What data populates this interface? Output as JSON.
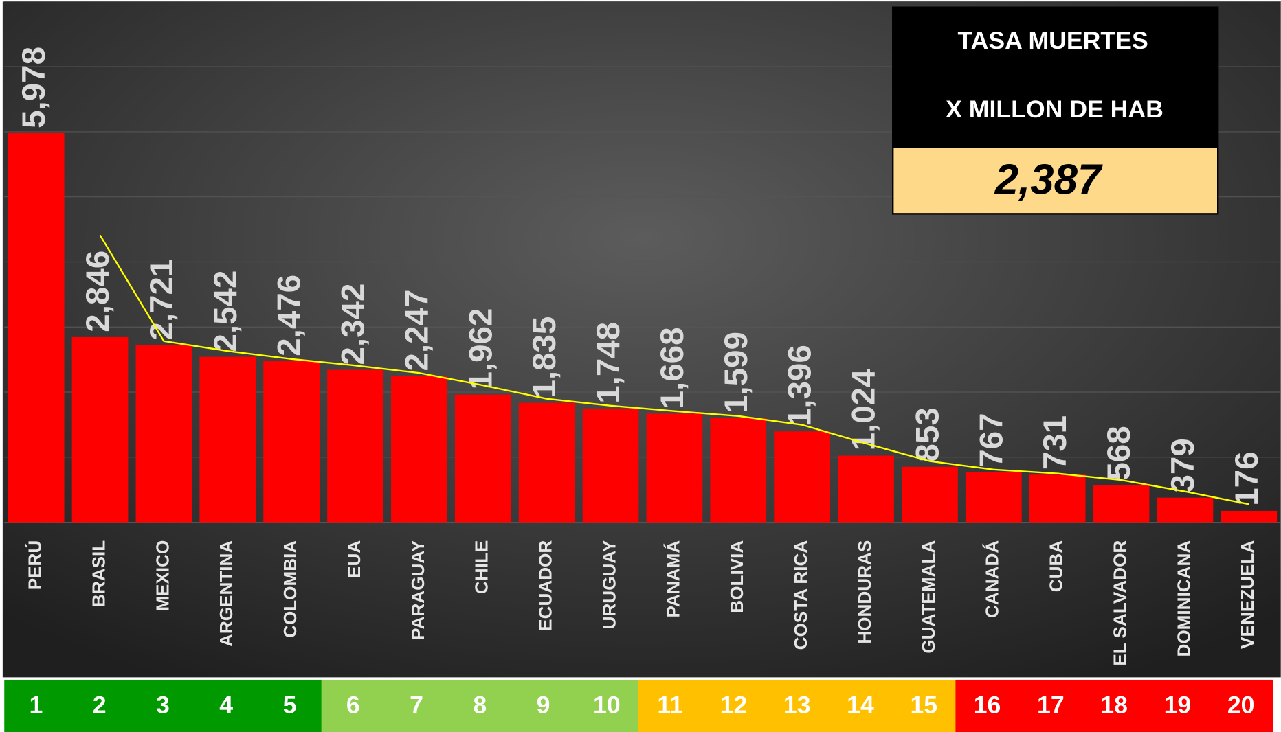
{
  "chart_data": {
    "type": "bar",
    "categories": [
      "PERÚ",
      "BRASIL",
      "MEXICO",
      "ARGENTINA",
      "COLOMBIA",
      "EUA",
      "PARAGUAY",
      "CHILE",
      "ECUADOR",
      "URUGUAY",
      "PANAMÁ",
      "BOLIVIA",
      "COSTA RICA",
      "HONDURAS",
      "GUATEMALA",
      "CANADÁ",
      "CUBA",
      "EL SALVADOR",
      "DOMINICANA",
      "VENEZUELA"
    ],
    "values": [
      5978,
      2846,
      2721,
      2542,
      2476,
      2342,
      2247,
      1962,
      1835,
      1748,
      1668,
      1599,
      1396,
      1024,
      853,
      767,
      731,
      568,
      379,
      176
    ],
    "value_labels": [
      "5,978",
      "2,846",
      "2,721",
      "2,542",
      "2,476",
      "2,342",
      "2,247",
      "1,962",
      "1,835",
      "1,748",
      "1,668",
      "1,599",
      "1,396",
      "1,024",
      "853",
      "767",
      "731",
      "568",
      "379",
      "176"
    ],
    "color": "#ff0000",
    "ylim": [
      0,
      8000
    ],
    "yticks": [
      0,
      1000,
      2000,
      3000,
      4000,
      5000,
      6000,
      7000,
      8000
    ],
    "grid": true,
    "trendline": {
      "type": "moving_average",
      "period": 2,
      "color": "#ffff00"
    },
    "summary_box": {
      "title_line1": "TASA MUERTES",
      "title_line2": "X MILLON DE HAB",
      "value": "2,387"
    },
    "ranks": [
      "1",
      "2",
      "3",
      "4",
      "5",
      "6",
      "7",
      "8",
      "9",
      "10",
      "11",
      "12",
      "13",
      "14",
      "15",
      "16",
      "17",
      "18",
      "19",
      "20"
    ],
    "rank_colors": [
      "#009a00",
      "#009a00",
      "#009a00",
      "#009a00",
      "#009a00",
      "#92d050",
      "#92d050",
      "#92d050",
      "#92d050",
      "#92d050",
      "#ffc000",
      "#ffc000",
      "#ffc000",
      "#ffc000",
      "#ffc000",
      "#ff0000",
      "#ff0000",
      "#ff0000",
      "#ff0000",
      "#ff0000"
    ]
  }
}
